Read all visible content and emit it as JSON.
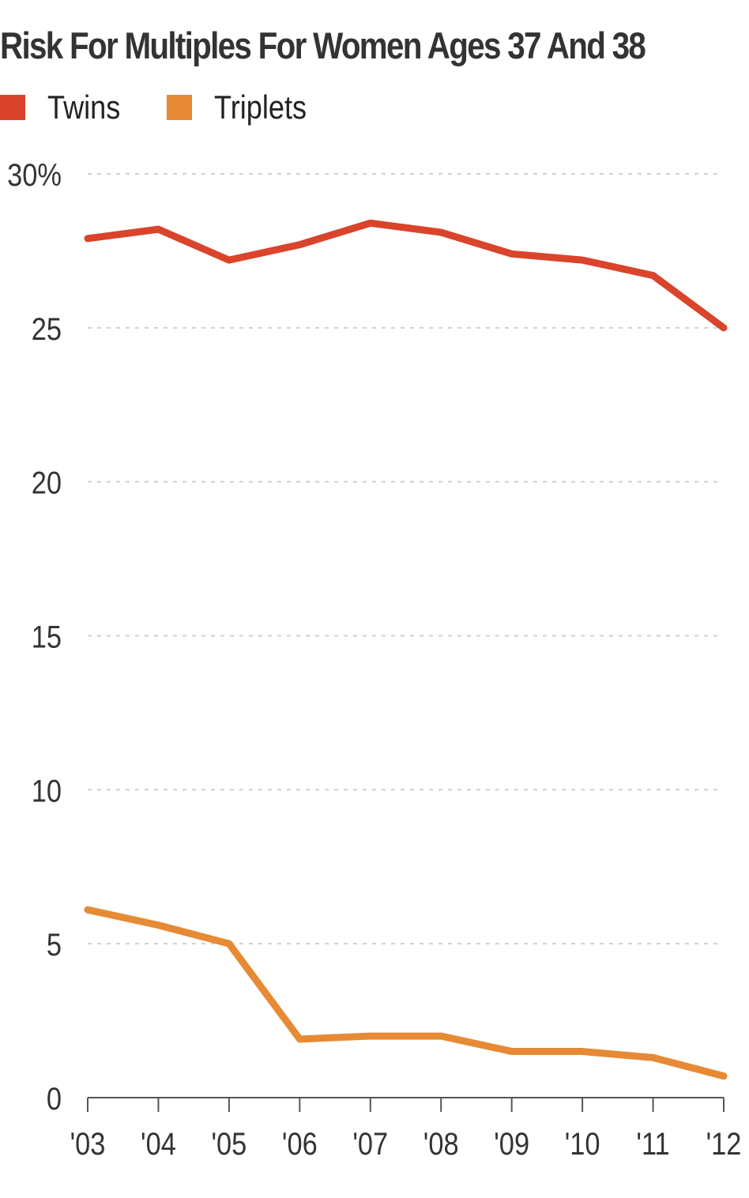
{
  "title": "Risk For Multiples For Women Ages 37 And 38",
  "legend": [
    {
      "label": "Twins",
      "color": "#d9442b"
    },
    {
      "label": "Triplets",
      "color": "#e68a35"
    }
  ],
  "y_tick_labels": [
    "30%",
    "25",
    "20",
    "15",
    "10",
    "5",
    "0"
  ],
  "x_tick_labels": [
    "'03",
    "'04",
    "'05",
    "'06",
    "'07",
    "'08",
    "'09",
    "'10",
    "'11",
    "'12"
  ],
  "chart_data": {
    "type": "line",
    "title": "Risk For Multiples For Women Ages 37 And 38",
    "xlabel": "",
    "ylabel": "",
    "x": [
      "'03",
      "'04",
      "'05",
      "'06",
      "'07",
      "'08",
      "'09",
      "'10",
      "'11",
      "'12"
    ],
    "series": [
      {
        "name": "Twins",
        "color": "#d9442b",
        "values": [
          27.9,
          28.2,
          27.2,
          27.7,
          28.4,
          28.1,
          27.4,
          27.2,
          26.7,
          25.0
        ]
      },
      {
        "name": "Triplets",
        "color": "#e68a35",
        "values": [
          6.1,
          5.6,
          5.0,
          1.9,
          2.0,
          2.0,
          1.5,
          1.5,
          1.3,
          0.7
        ]
      }
    ],
    "ylim": [
      0,
      30
    ],
    "y_ticks": [
      0,
      5,
      10,
      15,
      20,
      25,
      30
    ],
    "y_unit": "%",
    "grid": "horizontal dotted",
    "legend_position": "top-left"
  }
}
